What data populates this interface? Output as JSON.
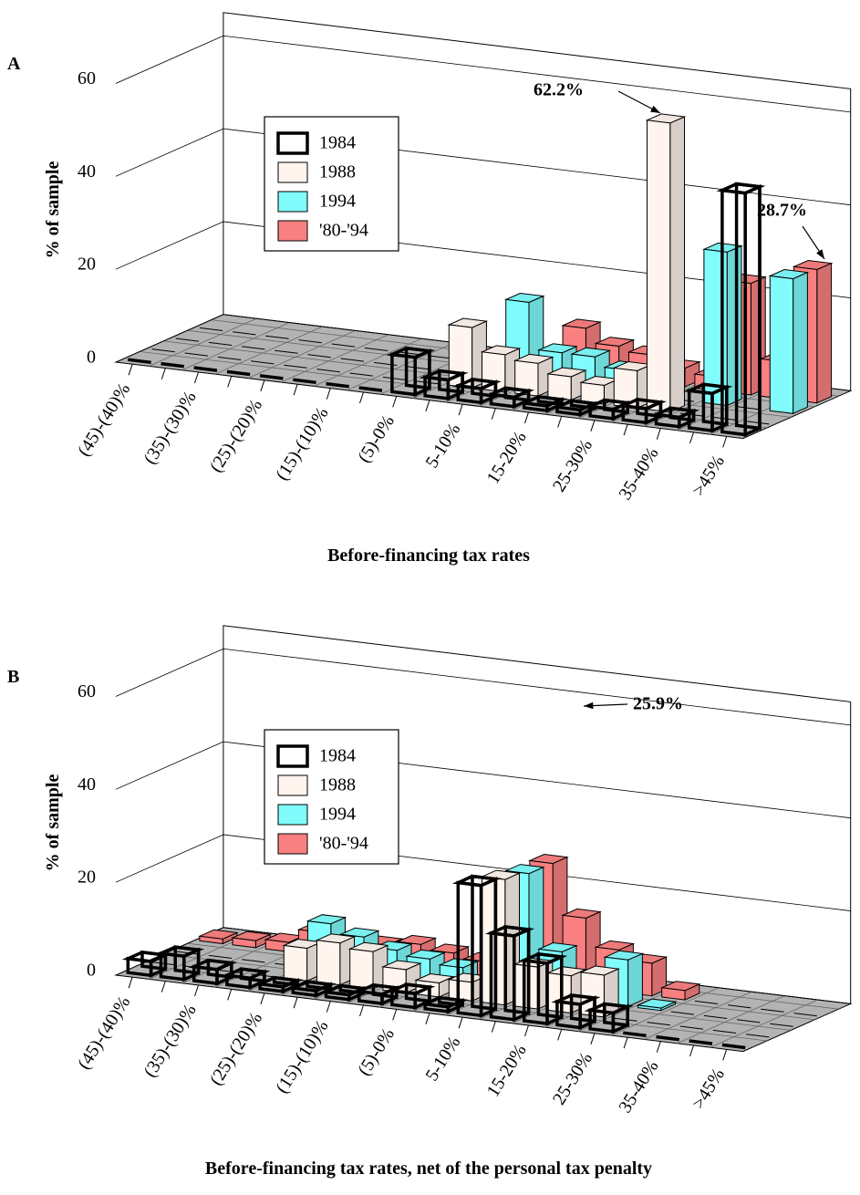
{
  "chart_data": [
    {
      "type": "bar3d",
      "label": "A",
      "title": "Before-financing tax rates",
      "y_label": "% of sample",
      "categories": [
        "(45)-(40)%",
        null,
        "(35)-(30)%",
        null,
        "(25)-(20)%",
        null,
        "(15)-(10)%",
        null,
        "(5)-0%",
        null,
        "5-10%",
        null,
        "15-20%",
        null,
        "25-30%",
        null,
        "35-40%",
        null,
        ">45%"
      ],
      "series": [
        {
          "name": "1984",
          "color": "#000000",
          "style": "outline",
          "values": [
            0,
            0,
            0,
            0,
            0,
            0,
            0,
            0,
            8,
            4,
            3,
            2,
            1,
            1,
            2,
            3,
            2,
            8,
            52
          ]
        },
        {
          "name": "1988",
          "color": "#fff4ee",
          "values": [
            0,
            0,
            0,
            0,
            0,
            0,
            0,
            0,
            0,
            13,
            8,
            7,
            5,
            4,
            8,
            62.2,
            0,
            0,
            0
          ]
        },
        {
          "name": "1994",
          "color": "#80fcfc",
          "values": [
            0,
            0,
            0,
            0,
            0,
            0,
            0,
            0,
            0,
            0,
            17,
            7,
            7,
            5,
            4,
            0,
            33,
            0,
            29
          ]
        },
        {
          "name": "'80-'94",
          "color": "#f98080",
          "values": [
            0,
            0,
            0,
            0,
            0,
            0,
            0,
            0,
            0,
            0,
            0,
            10,
            7,
            6,
            4,
            3,
            24,
            8,
            28.7
          ]
        }
      ],
      "annotations": [
        "62.2%",
        "28.7%"
      ],
      "ylim": [
        0,
        65
      ],
      "yticks": [
        0,
        20,
        40,
        60
      ],
      "grid": true
    },
    {
      "type": "bar3d",
      "label": "B",
      "title": "Before-financing tax rates, net of the personal tax penalty",
      "y_label": "% of sample",
      "categories": [
        "(45)-(40)%",
        null,
        "(35)-(30)%",
        null,
        "(25)-(20)%",
        null,
        "(15)-(10)%",
        null,
        "(5)-0%",
        null,
        "5-10%",
        null,
        "15-20%",
        null,
        "25-30%",
        null,
        "35-40%",
        null,
        ">45%"
      ],
      "series": [
        {
          "name": "1984",
          "color": "#000000",
          "style": "outline",
          "values": [
            3,
            5,
            3,
            2,
            1,
            1,
            1,
            2,
            3,
            1,
            28,
            18,
            13,
            5,
            4,
            0,
            0,
            0,
            0
          ]
        },
        {
          "name": "1988",
          "color": "#fff4ee",
          "values": [
            0,
            0,
            0,
            0,
            7,
            9,
            8,
            5,
            3,
            4,
            27,
            9,
            8,
            9,
            0,
            0,
            0,
            0,
            0
          ]
        },
        {
          "name": "1994",
          "color": "#80fcfc",
          "values": [
            0,
            0,
            0,
            0,
            10,
            8,
            6,
            5,
            4,
            2,
            26,
            10,
            5,
            10,
            0.5,
            0,
            0,
            0,
            0
          ]
        },
        {
          "name": "'80-'94",
          "color": "#f98080",
          "values": [
            1,
            1.5,
            2,
            5,
            4,
            4,
            5,
            4,
            3,
            2,
            25.9,
            15,
            9,
            7,
            2,
            0,
            0,
            0,
            0
          ]
        }
      ],
      "annotations": [
        "25.9%"
      ],
      "ylim": [
        0,
        65
      ],
      "yticks": [
        0,
        20,
        40,
        60
      ],
      "grid": true
    }
  ]
}
